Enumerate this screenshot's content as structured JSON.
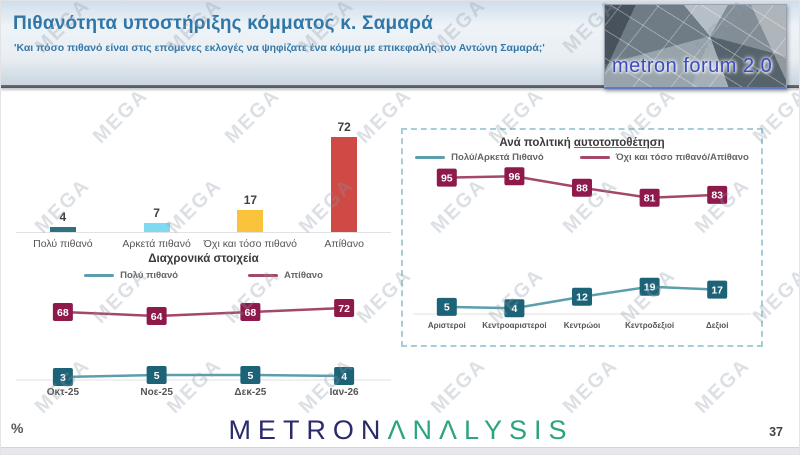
{
  "header": {
    "title": "Πιθανότητα υποστήριξης κόμματος κ. Σαμαρά",
    "subtitle": "'Και πόσο πιθανό είναι στις επόμενες εκλογές να ψηφίζατε ένα κόμμα με επικεφαλής τον Αντώνη Σαμαρά;'",
    "logo_text": "metron forum 2.0"
  },
  "watermark": {
    "text": "MEGA"
  },
  "footer": {
    "percent_label": "%",
    "brand_metron": "METRON",
    "brand_analysis": "ΛNΛLYSIS",
    "page_number": "37"
  },
  "chart_data": [
    {
      "id": "support-likelihood-bar",
      "type": "bar",
      "categories": [
        "Πολύ πιθανό",
        "Αρκετά πιθανό",
        "Όχι και τόσο πιθανό",
        "Απίθανο"
      ],
      "values": [
        4,
        7,
        17,
        72
      ],
      "colors": [
        "#2e7180",
        "#7fd9f2",
        "#fac33c",
        "#d04a45"
      ],
      "ylim": [
        0,
        80
      ],
      "grid": false,
      "value_labels": true
    },
    {
      "id": "trend-line",
      "type": "line",
      "title": "Διαχρονικά στοιχεία",
      "categories": [
        "Οκτ-25",
        "Νοε-25",
        "Δεκ-25",
        "Ιαν-26"
      ],
      "series": [
        {
          "name": "Πολύ πιθανό",
          "values": [
            3,
            5,
            5,
            4
          ],
          "line_color": "#5d9eae",
          "box_color": "#1d6377"
        },
        {
          "name": "Απίθανο",
          "values": [
            68,
            64,
            68,
            72
          ],
          "line_color": "#a4486b",
          "box_color": "#8e1a4c"
        }
      ],
      "ylim": [
        0,
        80
      ],
      "grid": false,
      "legend_position": "top",
      "value_labels": true
    },
    {
      "id": "political-self-placement-line",
      "type": "line",
      "title_prefix": "Ανά πολιτική ",
      "title_underlined": "αυτοτοποθέτηση",
      "categories": [
        "Αριστεροί",
        "Κεντροαριστεροί",
        "Κεντρώοι",
        "Κεντροδεξιοί",
        "Δεξιοί"
      ],
      "series": [
        {
          "name": "Πολύ/Αρκετά Πιθανό",
          "values": [
            5,
            4,
            12,
            19,
            17
          ],
          "line_color": "#5d9eae",
          "box_color": "#1d6377"
        },
        {
          "name": "Όχι και τόσο πιθανό/Απίθανο",
          "values": [
            95,
            96,
            88,
            81,
            83
          ],
          "line_color": "#a4486b",
          "box_color": "#8e1a4c"
        }
      ],
      "ylim": [
        0,
        100
      ],
      "grid": false,
      "legend_position": "top",
      "value_labels": true
    }
  ]
}
